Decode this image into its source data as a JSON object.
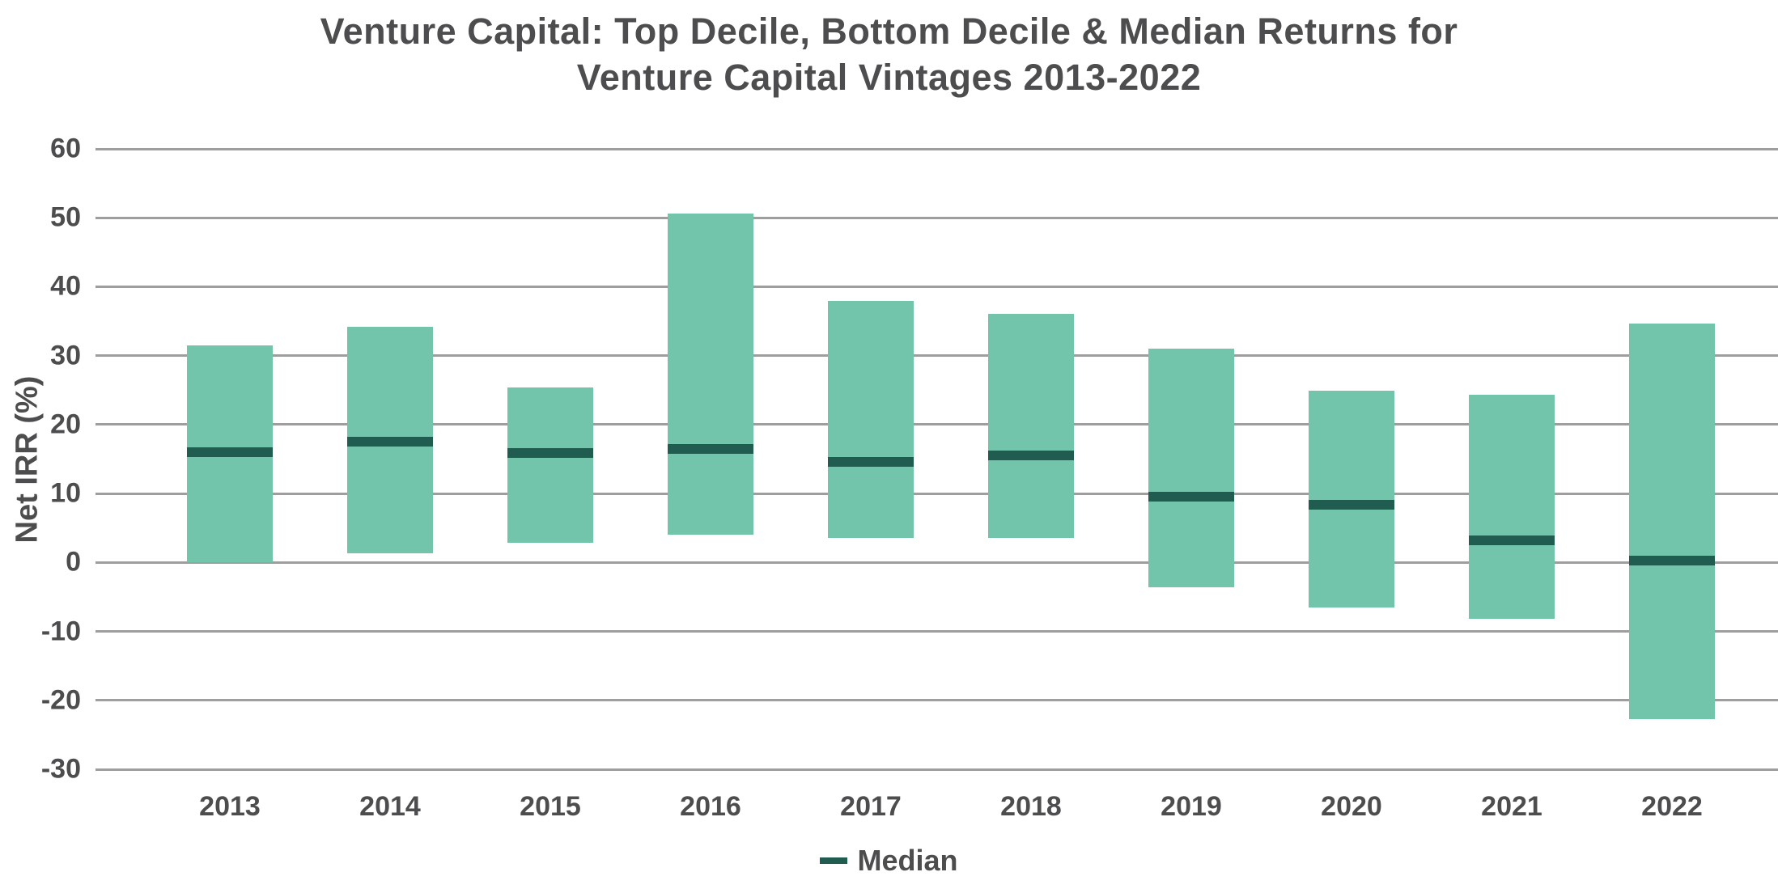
{
  "title": {
    "line1": "Venture Capital: Top Decile, Bottom Decile & Median Returns for",
    "line2": "Venture Capital Vintages 2013-2022"
  },
  "y_axis": {
    "label": "Net IRR (%)"
  },
  "legend": {
    "label": "Median"
  },
  "colors": {
    "bar_fill": "#72C5AB",
    "median": "#215C50",
    "grid": "#9E9E9E",
    "text": "#4D4D4F"
  },
  "chart_data": {
    "type": "bar",
    "subtype": "floating-range-bar",
    "title": "Venture Capital: Top Decile, Bottom Decile & Median Returns for Venture Capital Vintages 2013-2022",
    "categories": [
      "2013",
      "2014",
      "2015",
      "2016",
      "2017",
      "2018",
      "2019",
      "2020",
      "2021",
      "2022"
    ],
    "series": [
      {
        "name": "Top Decile",
        "values": [
          31.5,
          34.2,
          25.4,
          50.6,
          37.9,
          36.1,
          31.0,
          24.9,
          24.3,
          34.7
        ]
      },
      {
        "name": "Bottom Decile",
        "values": [
          0.0,
          1.3,
          2.8,
          4.0,
          3.5,
          3.5,
          -3.6,
          -6.5,
          -8.2,
          -22.7
        ]
      },
      {
        "name": "Median",
        "values": [
          16.0,
          17.5,
          15.9,
          16.5,
          14.6,
          15.5,
          9.5,
          8.4,
          3.2,
          0.3
        ]
      }
    ],
    "xlabel": "",
    "ylabel": "Net IRR (%)",
    "ylim": [
      -30,
      60
    ],
    "yticks": [
      60,
      50,
      40,
      30,
      20,
      10,
      0,
      -10,
      -20,
      -30
    ],
    "grid": true,
    "legend_position": "bottom",
    "legend_entries": [
      "Median"
    ]
  }
}
